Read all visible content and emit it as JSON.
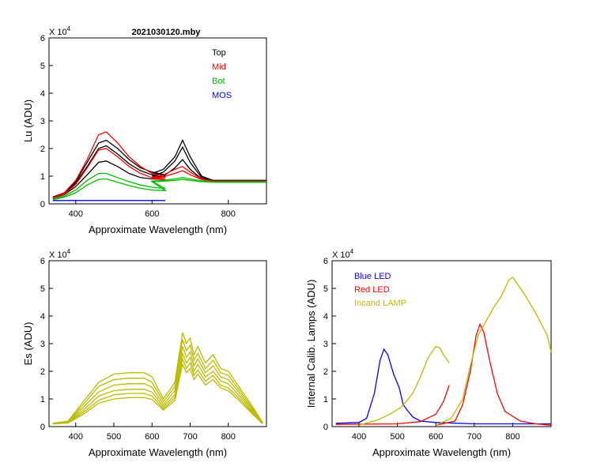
{
  "title": "2021030120.mby",
  "chart_data": [
    {
      "id": "lu",
      "type": "line",
      "title": "2021030120.mby",
      "xlabel": "Approximate Wavelength (nm)",
      "ylabel": "Lu (ADU)",
      "multiplier_label": "X 10",
      "multiplier_exp": "4",
      "xlim": [
        330,
        900
      ],
      "ylim": [
        0,
        6
      ],
      "xticks": [
        "400",
        "600",
        "800"
      ],
      "yticks": [
        "0",
        "1",
        "2",
        "3",
        "4",
        "5",
        "6"
      ],
      "legend": [
        {
          "label": "Top",
          "color": "#000000"
        },
        {
          "label": "Mid",
          "color": "#ff0000"
        },
        {
          "label": "Bot",
          "color": "#00bb00"
        },
        {
          "label": "MOS",
          "color": "#0000ff"
        }
      ],
      "series": [
        {
          "name": "Top-1",
          "color": "#000000",
          "x": [
            340,
            370,
            400,
            430,
            460,
            480,
            510,
            540,
            570,
            600,
            635,
            600,
            630,
            660,
            680,
            700,
            730,
            760,
            900
          ],
          "y": [
            0.25,
            0.4,
            0.8,
            1.5,
            2.2,
            2.3,
            2.0,
            1.6,
            1.3,
            1.15,
            1.05,
            1.1,
            1.25,
            1.7,
            2.3,
            1.7,
            1.0,
            0.85,
            0.85
          ]
        },
        {
          "name": "Top-2",
          "color": "#000000",
          "x": [
            340,
            370,
            400,
            430,
            460,
            480,
            510,
            540,
            570,
            600,
            635,
            600,
            630,
            660,
            680,
            700,
            730,
            760,
            900
          ],
          "y": [
            0.22,
            0.38,
            0.75,
            1.35,
            2.0,
            2.1,
            1.8,
            1.45,
            1.2,
            1.05,
            0.98,
            1.0,
            1.15,
            1.55,
            2.05,
            1.5,
            0.95,
            0.83,
            0.83
          ]
        },
        {
          "name": "Top-3",
          "color": "#000000",
          "x": [
            340,
            370,
            400,
            430,
            460,
            480,
            510,
            540,
            570,
            600,
            635,
            600,
            630,
            660,
            680,
            700,
            730,
            760,
            900
          ],
          "y": [
            0.2,
            0.33,
            0.62,
            1.05,
            1.5,
            1.55,
            1.35,
            1.1,
            0.95,
            0.9,
            0.88,
            0.92,
            1.0,
            1.3,
            1.6,
            1.25,
            0.9,
            0.82,
            0.82
          ]
        },
        {
          "name": "Mid-1",
          "color": "#ff0000",
          "x": [
            340,
            370,
            400,
            430,
            460,
            480,
            510,
            540,
            570,
            600,
            635,
            600,
            630,
            660,
            680,
            700,
            730,
            760,
            900
          ],
          "y": [
            0.22,
            0.4,
            0.85,
            1.6,
            2.5,
            2.6,
            2.2,
            1.7,
            1.35,
            1.1,
            0.95,
            0.95,
            1.05,
            1.25,
            1.35,
            1.15,
            0.9,
            0.82,
            0.82
          ]
        },
        {
          "name": "Mid-2",
          "color": "#ff0000",
          "x": [
            340,
            370,
            400,
            430,
            460,
            480,
            510,
            540,
            570,
            600,
            635,
            600,
            630,
            660,
            680,
            700,
            730,
            760,
            900
          ],
          "y": [
            0.2,
            0.34,
            0.7,
            1.3,
            1.95,
            2.0,
            1.7,
            1.35,
            1.1,
            0.95,
            0.88,
            0.9,
            0.98,
            1.1,
            1.2,
            1.05,
            0.88,
            0.82,
            0.82
          ]
        },
        {
          "name": "Bot-1",
          "color": "#00bb00",
          "x": [
            340,
            370,
            400,
            430,
            460,
            480,
            510,
            540,
            570,
            600,
            635,
            600,
            630,
            660,
            680,
            700,
            730,
            760,
            900
          ],
          "y": [
            0.18,
            0.28,
            0.5,
            0.85,
            1.1,
            1.1,
            0.95,
            0.8,
            0.68,
            0.6,
            0.55,
            0.82,
            0.85,
            0.9,
            0.95,
            0.9,
            0.83,
            0.8,
            0.8
          ]
        },
        {
          "name": "Bot-2",
          "color": "#00bb00",
          "x": [
            340,
            370,
            400,
            430,
            460,
            480,
            510,
            540,
            570,
            600,
            635,
            600,
            630,
            660,
            680,
            700,
            730,
            760,
            900
          ],
          "y": [
            0.15,
            0.24,
            0.4,
            0.68,
            0.88,
            0.9,
            0.78,
            0.66,
            0.56,
            0.5,
            0.48,
            0.8,
            0.82,
            0.85,
            0.88,
            0.85,
            0.8,
            0.78,
            0.78
          ]
        },
        {
          "name": "MOS",
          "color": "#0000ff",
          "x": [
            340,
            635
          ],
          "y": [
            0.12,
            0.12
          ]
        }
      ]
    },
    {
      "id": "es",
      "type": "line",
      "title": "",
      "xlabel": "Approximate Wavelength (nm)",
      "ylabel": "Es  (ADU)",
      "multiplier_label": "X 10",
      "multiplier_exp": "4",
      "xlim": [
        330,
        900
      ],
      "ylim": [
        0,
        6
      ],
      "xticks": [
        "400",
        "500",
        "600",
        "700",
        "800"
      ],
      "yticks": [
        "0",
        "1",
        "2",
        "3",
        "4",
        "5",
        "6"
      ],
      "legend": [],
      "series": [
        {
          "name": "Es-1",
          "color": "#bbbb00",
          "x": [
            340,
            380,
            420,
            460,
            500,
            540,
            580,
            600,
            630,
            660,
            680,
            690,
            700,
            710,
            720,
            740,
            760,
            780,
            800,
            830,
            860,
            890
          ],
          "y": [
            0.12,
            0.2,
            0.9,
            1.6,
            1.9,
            1.95,
            1.95,
            1.8,
            1.0,
            1.6,
            3.4,
            3.0,
            3.2,
            2.6,
            2.9,
            2.3,
            2.6,
            2.1,
            2.0,
            1.4,
            0.8,
            0.15
          ]
        },
        {
          "name": "Es-2",
          "color": "#bbbb00",
          "x": [
            340,
            380,
            420,
            460,
            500,
            540,
            580,
            600,
            630,
            660,
            680,
            690,
            700,
            710,
            720,
            740,
            760,
            780,
            800,
            830,
            860,
            890
          ],
          "y": [
            0.12,
            0.18,
            0.8,
            1.45,
            1.7,
            1.75,
            1.75,
            1.6,
            0.9,
            1.45,
            3.15,
            2.75,
            2.95,
            2.4,
            2.65,
            2.1,
            2.4,
            1.95,
            1.85,
            1.3,
            0.72,
            0.14
          ]
        },
        {
          "name": "Es-3",
          "color": "#bbbb00",
          "x": [
            340,
            380,
            420,
            460,
            500,
            540,
            580,
            600,
            630,
            660,
            680,
            690,
            700,
            710,
            720,
            740,
            760,
            780,
            800,
            830,
            860,
            890
          ],
          "y": [
            0.11,
            0.16,
            0.7,
            1.25,
            1.5,
            1.55,
            1.55,
            1.42,
            0.8,
            1.3,
            2.9,
            2.5,
            2.7,
            2.2,
            2.45,
            1.95,
            2.2,
            1.8,
            1.7,
            1.2,
            0.66,
            0.13
          ]
        },
        {
          "name": "Es-4",
          "color": "#bbbb00",
          "x": [
            340,
            380,
            420,
            460,
            500,
            540,
            580,
            600,
            630,
            660,
            680,
            690,
            700,
            710,
            720,
            740,
            760,
            780,
            800,
            830,
            860,
            890
          ],
          "y": [
            0.1,
            0.15,
            0.6,
            1.1,
            1.3,
            1.35,
            1.35,
            1.25,
            0.72,
            1.15,
            2.65,
            2.3,
            2.5,
            2.0,
            2.25,
            1.8,
            2.0,
            1.65,
            1.55,
            1.1,
            0.6,
            0.12
          ]
        },
        {
          "name": "Es-5",
          "color": "#bbbb00",
          "x": [
            340,
            380,
            420,
            460,
            500,
            540,
            580,
            600,
            630,
            660,
            680,
            690,
            700,
            710,
            720,
            740,
            760,
            780,
            800,
            830,
            860,
            890
          ],
          "y": [
            0.1,
            0.14,
            0.52,
            0.95,
            1.15,
            1.2,
            1.2,
            1.1,
            0.65,
            1.05,
            2.45,
            2.1,
            2.3,
            1.85,
            2.05,
            1.65,
            1.85,
            1.5,
            1.4,
            1.0,
            0.55,
            0.11
          ]
        },
        {
          "name": "Es-6",
          "color": "#bbbb00",
          "x": [
            340,
            380,
            420,
            460,
            500,
            540,
            580,
            600,
            630,
            660,
            680,
            690,
            700,
            710,
            720,
            740,
            760,
            780,
            800,
            830,
            860,
            890
          ],
          "y": [
            0.1,
            0.13,
            0.45,
            0.85,
            1.0,
            1.05,
            1.05,
            0.98,
            0.6,
            0.95,
            2.25,
            1.95,
            2.1,
            1.7,
            1.9,
            1.5,
            1.7,
            1.4,
            1.3,
            0.92,
            0.5,
            0.1
          ]
        }
      ]
    },
    {
      "id": "calib",
      "type": "line",
      "title": "",
      "xlabel": "Approximate Wavelength (nm)",
      "ylabel": "Internal Calib. Lamps  (ADU)",
      "multiplier_label": "X 10",
      "multiplier_exp": "4",
      "xlim": [
        330,
        900
      ],
      "ylim": [
        0,
        6
      ],
      "xticks": [
        "400",
        "500",
        "600",
        "700",
        "800"
      ],
      "yticks": [
        "0",
        "1",
        "2",
        "3",
        "4",
        "5",
        "6"
      ],
      "legend": [
        {
          "label": "Blue LED",
          "color": "#0000ff"
        },
        {
          "label": "Red LED",
          "color": "#ff0000"
        },
        {
          "label": "Incand LAMP",
          "color": "#bbbb00"
        }
      ],
      "series": [
        {
          "name": "Blue LED",
          "color": "#0000ff",
          "x": [
            340,
            400,
            420,
            440,
            455,
            465,
            475,
            490,
            505,
            515,
            525,
            540,
            560,
            600,
            700,
            900
          ],
          "y": [
            0.12,
            0.15,
            0.3,
            1.2,
            2.4,
            2.8,
            2.6,
            1.9,
            1.4,
            0.8,
            0.6,
            0.35,
            0.2,
            0.15,
            0.1,
            0.1
          ]
        },
        {
          "name": "Red LED",
          "color": "#ff0000",
          "x": [
            340,
            500,
            560,
            600,
            620,
            635
          ],
          "y": [
            0.08,
            0.1,
            0.18,
            0.45,
            0.9,
            1.5
          ]
        },
        {
          "name": "Red LED B",
          "color": "#ff0000",
          "x": [
            600,
            650,
            670,
            690,
            705,
            715,
            725,
            740,
            760,
            780,
            820,
            860,
            900
          ],
          "y": [
            0.05,
            0.2,
            0.8,
            2.0,
            3.3,
            3.7,
            3.4,
            2.4,
            1.2,
            0.55,
            0.2,
            0.1,
            0.05
          ]
        },
        {
          "name": "Incand LAMP",
          "color": "#bbbb00",
          "x": [
            400,
            450,
            480,
            510,
            540,
            560,
            580,
            600,
            610,
            620,
            635
          ],
          "y": [
            0.05,
            0.25,
            0.45,
            0.7,
            1.2,
            1.8,
            2.5,
            2.9,
            2.85,
            2.6,
            2.3
          ]
        },
        {
          "name": "Incand LAMP B",
          "color": "#bbbb00",
          "x": [
            600,
            640,
            670,
            690,
            710,
            730,
            750,
            770,
            790,
            800,
            810,
            830,
            860,
            890,
            900
          ],
          "y": [
            0.05,
            0.3,
            1.0,
            2.2,
            3.3,
            3.8,
            4.3,
            4.7,
            5.3,
            5.4,
            5.2,
            4.8,
            4.1,
            3.3,
            2.7
          ]
        }
      ]
    }
  ]
}
